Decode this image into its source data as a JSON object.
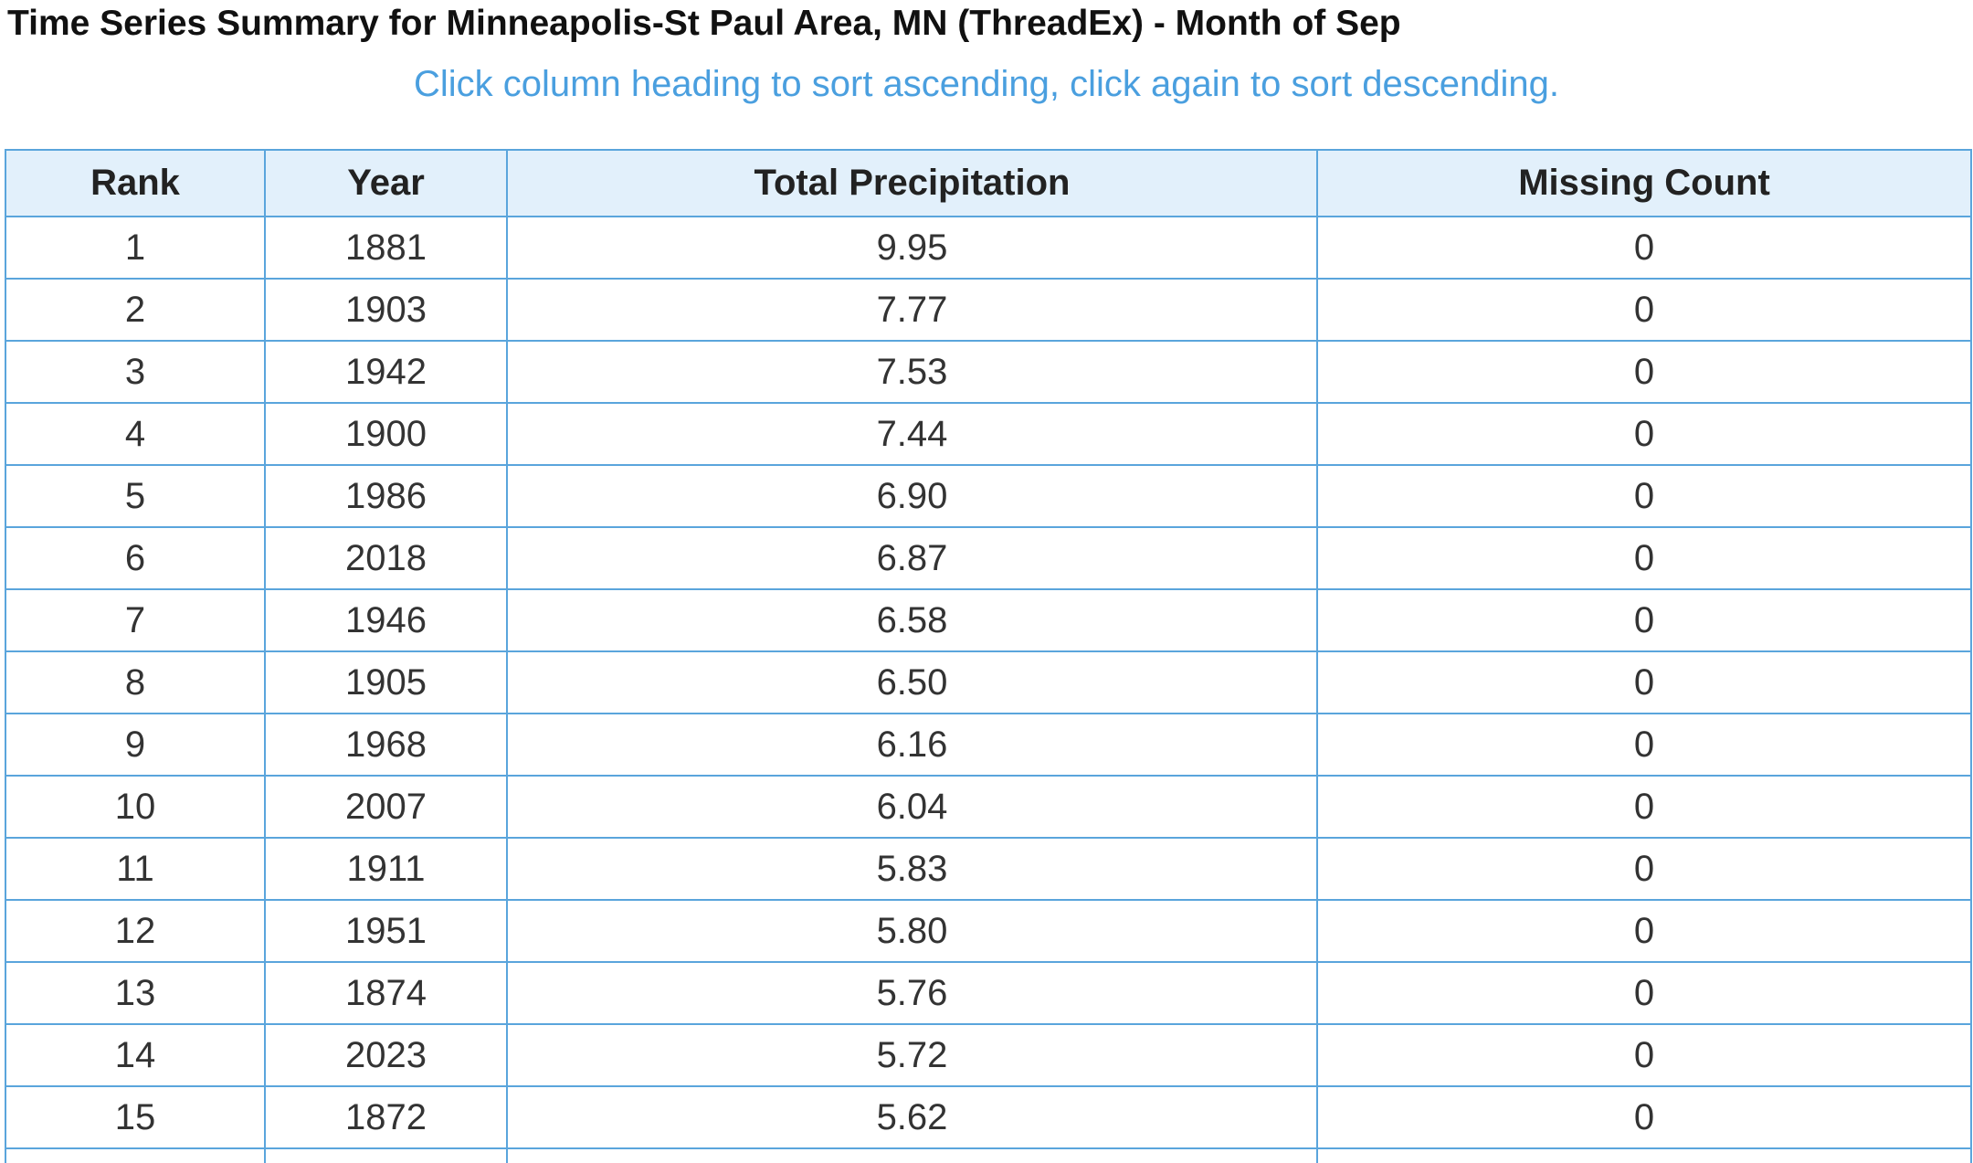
{
  "header": {
    "title": "Time Series Summary for Minneapolis-St Paul Area, MN (ThreadEx) - Month of Sep",
    "subtitle": "Click column heading to sort ascending, click again to sort descending."
  },
  "table": {
    "columns": [
      "Rank",
      "Year",
      "Total Precipitation",
      "Missing Count"
    ],
    "rows": [
      [
        "1",
        "1881",
        "9.95",
        "0"
      ],
      [
        "2",
        "1903",
        "7.77",
        "0"
      ],
      [
        "3",
        "1942",
        "7.53",
        "0"
      ],
      [
        "4",
        "1900",
        "7.44",
        "0"
      ],
      [
        "5",
        "1986",
        "6.90",
        "0"
      ],
      [
        "6",
        "2018",
        "6.87",
        "0"
      ],
      [
        "7",
        "1946",
        "6.58",
        "0"
      ],
      [
        "8",
        "1905",
        "6.50",
        "0"
      ],
      [
        "9",
        "1968",
        "6.16",
        "0"
      ],
      [
        "10",
        "2007",
        "6.04",
        "0"
      ],
      [
        "11",
        "1911",
        "5.83",
        "0"
      ],
      [
        "12",
        "1951",
        "5.80",
        "0"
      ],
      [
        "13",
        "1874",
        "5.76",
        "0"
      ],
      [
        "14",
        "2023",
        "5.72",
        "0"
      ],
      [
        "15",
        "1872",
        "5.62",
        "0"
      ]
    ]
  }
}
